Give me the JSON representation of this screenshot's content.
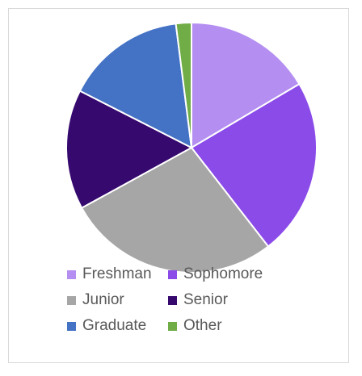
{
  "chart_data": {
    "type": "pie",
    "categories": [
      "Freshman",
      "Sophomore",
      "Junior",
      "Senior",
      "Graduate",
      "Other"
    ],
    "values": [
      16.5,
      23,
      27.5,
      15.5,
      15.5,
      2
    ],
    "colors": [
      "#b48ff1",
      "#8b4be9",
      "#a6a6a6",
      "#36096f",
      "#4472c4",
      "#70ad47"
    ],
    "title": "",
    "legend": "bottom",
    "start_angle": "12 o'clock, clockwise",
    "slice_separator_color": "#ffffff"
  }
}
